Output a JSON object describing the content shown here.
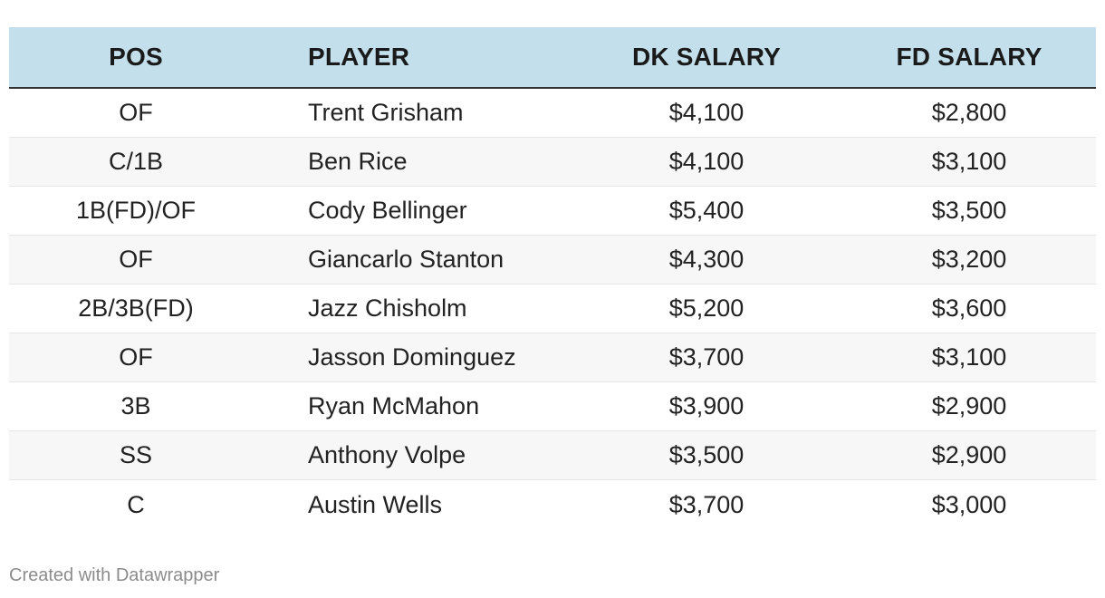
{
  "table": {
    "columns": [
      "POS",
      "PLAYER",
      "DK SALARY",
      "FD SALARY"
    ],
    "rows": [
      {
        "pos": "OF",
        "player": "Trent Grisham",
        "dk": "$4,100",
        "fd": "$2,800"
      },
      {
        "pos": "C/1B",
        "player": "Ben Rice",
        "dk": "$4,100",
        "fd": "$3,100"
      },
      {
        "pos": "1B(FD)/OF",
        "player": "Cody Bellinger",
        "dk": "$5,400",
        "fd": "$3,500"
      },
      {
        "pos": "OF",
        "player": "Giancarlo Stanton",
        "dk": "$4,300",
        "fd": "$3,200"
      },
      {
        "pos": "2B/3B(FD)",
        "player": "Jazz Chisholm",
        "dk": "$5,200",
        "fd": "$3,600"
      },
      {
        "pos": "OF",
        "player": "Jasson Dominguez",
        "dk": "$3,700",
        "fd": "$3,100"
      },
      {
        "pos": "3B",
        "player": "Ryan McMahon",
        "dk": "$3,900",
        "fd": "$2,900"
      },
      {
        "pos": "SS",
        "player": "Anthony Volpe",
        "dk": "$3,500",
        "fd": "$2,900"
      },
      {
        "pos": "C",
        "player": "Austin Wells",
        "dk": "$3,700",
        "fd": "$3,000"
      }
    ]
  },
  "footer": {
    "credit": "Created with Datawrapper"
  },
  "colors": {
    "header_bg": "#c4dfec",
    "alt_row_bg": "#f7f7f7",
    "footer_text": "#8c8c8c"
  }
}
